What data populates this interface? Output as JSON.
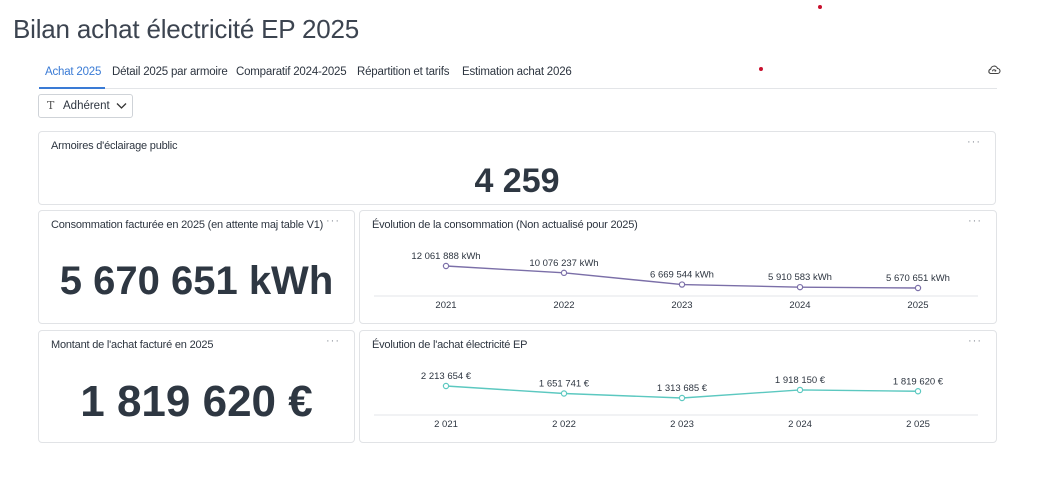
{
  "page": {
    "title": "Bilan achat électricité EP 2025"
  },
  "tabs": [
    {
      "label": "Achat 2025",
      "active": true
    },
    {
      "label": "Détail 2025 par armoire",
      "active": false
    },
    {
      "label": "Comparatif 2024-2025",
      "active": false
    },
    {
      "label": "Répartition et tarifs",
      "active": false
    },
    {
      "label": "Estimation achat 2026",
      "active": false
    }
  ],
  "toolbar": {
    "icon": "cloud-refresh-icon"
  },
  "filter": {
    "icon": "text-type-icon",
    "label": "Adhérent"
  },
  "cards": {
    "armoires": {
      "title": "Armoires d'éclairage public",
      "value": "4 259",
      "menu": "···"
    },
    "consommation": {
      "title": "Consommation facturée en 2025 (en attente maj table V1)",
      "value": "5 670 651 kWh",
      "menu": "···"
    },
    "montant": {
      "title": "Montant de l'achat facturé en 2025",
      "value": "1 819 620 €",
      "menu": "···"
    },
    "evol_conso": {
      "title": "Évolution de la consommation (Non actualisé pour 2025)",
      "menu": "···"
    },
    "evol_achat": {
      "title": "Évolution de l'achat électricité EP",
      "menu": "···"
    }
  },
  "colors": {
    "accent": "#3a7bd5",
    "conso_line": "#7b6fa8",
    "achat_line": "#5cc8c0"
  },
  "chart_data": [
    {
      "type": "line",
      "title": "Évolution de la consommation (Non actualisé pour 2025)",
      "x": [
        "2021",
        "2022",
        "2023",
        "2024",
        "2025"
      ],
      "series": [
        {
          "values": [
            12061888,
            10076237,
            6669544,
            5910583,
            5670651
          ],
          "labels": [
            "12 061 888 kWh",
            "10 076 237 kWh",
            "6 669 544 kWh",
            "5 910 583 kWh",
            "5 670 651 kWh"
          ]
        }
      ],
      "grid": false
    },
    {
      "type": "line",
      "title": "Évolution de l'achat électricité EP",
      "x": [
        "2 021",
        "2 022",
        "2 023",
        "2 024",
        "2 025"
      ],
      "series": [
        {
          "values": [
            2213654,
            1651741,
            1313685,
            1918150,
            1819620
          ],
          "labels": [
            "2 213 654 €",
            "1 651 741 €",
            "1 313 685 €",
            "1 918 150 €",
            "1 819 620 €"
          ]
        }
      ],
      "grid": false
    }
  ]
}
